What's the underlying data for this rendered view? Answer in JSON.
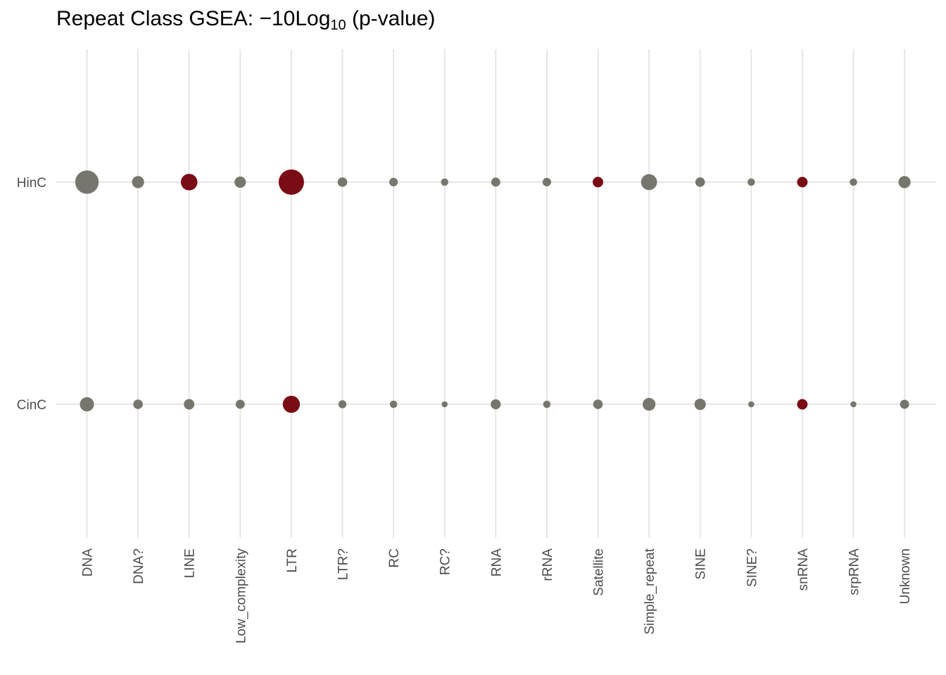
{
  "chart_data": {
    "type": "scatter",
    "title_prefix": "Repeat Class GSEA:  −10Log",
    "title_sub": "10",
    "title_suffix": " (p-value)",
    "xlabel": "",
    "ylabel": "",
    "categories": [
      "DNA",
      "DNA?",
      "LINE",
      "Low_complexity",
      "LTR",
      "LTR?",
      "RC",
      "RC?",
      "RNA",
      "rRNA",
      "Satellite",
      "Simple_repeat",
      "SINE",
      "SINE?",
      "snRNA",
      "srpRNA",
      "Unknown"
    ],
    "rows": [
      "HinC",
      "CinC"
    ],
    "grid": true,
    "colors": {
      "significant": "#7a0c16",
      "not_significant": "#77766e",
      "grid": "#e6e6e6"
    },
    "series": [
      {
        "name": "HinC",
        "values": [
          30,
          8,
          15,
          7,
          35,
          5,
          4,
          3,
          4.5,
          4,
          6,
          14,
          5,
          3,
          6,
          3,
          8
        ],
        "significant": [
          false,
          false,
          true,
          false,
          true,
          false,
          false,
          false,
          false,
          false,
          true,
          false,
          false,
          false,
          true,
          false,
          false
        ]
      },
      {
        "name": "CinC",
        "values": [
          11,
          5,
          6,
          4.5,
          16,
          3.5,
          3,
          2,
          5.5,
          3,
          5,
          9,
          7,
          2,
          6,
          2,
          4.5
        ],
        "significant": [
          false,
          false,
          false,
          false,
          true,
          false,
          false,
          false,
          false,
          false,
          false,
          false,
          false,
          false,
          true,
          false,
          false
        ]
      }
    ]
  }
}
